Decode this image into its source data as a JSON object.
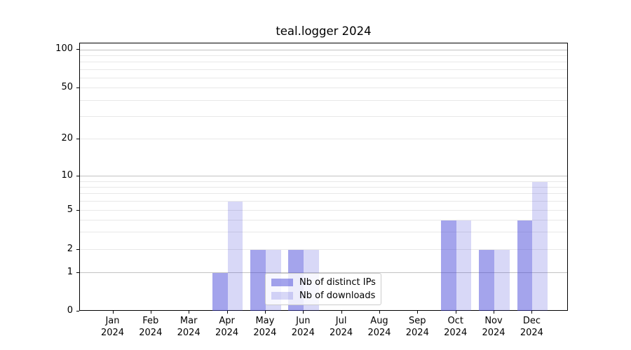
{
  "chart_data": {
    "type": "bar",
    "title": "teal.logger 2024",
    "categories": [
      "Jan",
      "Feb",
      "Mar",
      "Apr",
      "May",
      "Jun",
      "Jul",
      "Aug",
      "Sep",
      "Oct",
      "Nov",
      "Dec"
    ],
    "category_year_suffix": "2024",
    "series": [
      {
        "name": "Nb of distinct IPs",
        "color": "rgba(62,62,215,0.47)",
        "values": [
          0,
          0,
          0,
          1,
          2,
          2,
          0,
          0,
          0,
          4,
          2,
          4
        ]
      },
      {
        "name": "Nb of downloads",
        "color": "rgba(62,62,215,0.20)",
        "values": [
          0,
          0,
          0,
          6,
          2,
          2,
          0,
          0,
          0,
          4,
          2,
          9
        ]
      }
    ],
    "y_ticks": [
      0,
      1,
      2,
      5,
      10,
      20,
      50,
      100
    ],
    "y_major_gridlines": [
      1,
      10,
      100
    ],
    "y_minor_gridlines": [
      2,
      3,
      4,
      5,
      6,
      7,
      8,
      9,
      20,
      30,
      40,
      50,
      60,
      70,
      80,
      90
    ],
    "yscale": "symlog",
    "ylim": [
      0,
      113
    ],
    "xlabel": "",
    "ylabel": "",
    "grid": true,
    "legend": {
      "position": "lower center",
      "entries": [
        "Nb of distinct IPs",
        "Nb of downloads"
      ]
    }
  },
  "colors": {
    "bar_distinct_ips_flat": "#a4a4ec",
    "bar_downloads_flat": "#d8d8f7",
    "major_grid": "#c3c3c3",
    "minor_grid": "#e8e8e8",
    "axis": "#000000",
    "text": "#000000",
    "legend_border": "#cccccc"
  }
}
